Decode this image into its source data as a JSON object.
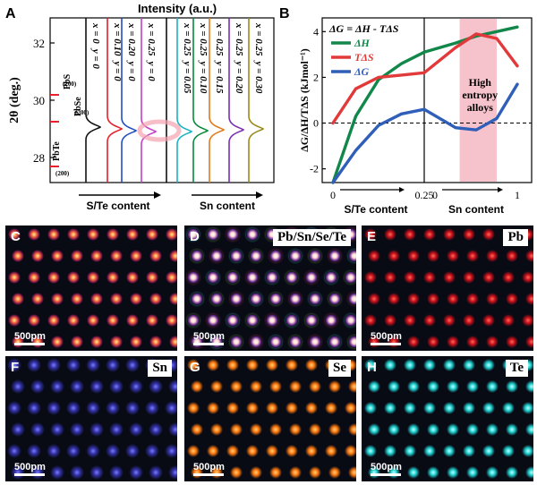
{
  "panelA": {
    "label": "A",
    "top_label": "Intensity (a.u.)",
    "ylabel": "2θ (deg.)",
    "yticks": [
      "32",
      "30",
      "28"
    ],
    "ref_labels": [
      "PbTe",
      "PbS",
      "PbSe"
    ],
    "peak_labels": [
      "(200)",
      "(200)",
      "(200)"
    ],
    "compositions": [
      {
        "x": "x = 0",
        "y": "y = 0",
        "color": "#111111"
      },
      {
        "x": "x = 0.10",
        "y": "y = 0",
        "color": "#e8202a"
      },
      {
        "x": "x = 0.20",
        "y": "y = 0",
        "color": "#1f4fbf"
      },
      {
        "x": "x = 0.25",
        "y": "y = 0",
        "color": "#c23fc6"
      },
      {
        "x": "x = 0.25",
        "y": "y = 0.05",
        "color": "#1bb2c2"
      },
      {
        "x": "x = 0.25",
        "y": "y = 0.10",
        "color": "#0a8a3c"
      },
      {
        "x": "x = 0.25",
        "y": "y = 0.15",
        "color": "#e07a1a"
      },
      {
        "x": "x = 0.25",
        "y": "y = 0.20",
        "color": "#7a2fb0"
      },
      {
        "x": "x = 0.25",
        "y": "y = 0.30",
        "color": "#9a8a1a"
      }
    ],
    "arrow1": "S/Te content",
    "arrow2": "Sn content"
  },
  "panelB": {
    "label": "B",
    "equation": "ΔG = ΔH - TΔS",
    "legend": [
      {
        "label": "ΔH",
        "color": "#12874a"
      },
      {
        "label": "TΔS",
        "color": "#e23a3a"
      },
      {
        "label": "ΔG",
        "color": "#2f5fb8"
      }
    ],
    "ylabel": "ΔG/ΔH/TΔS (kJmol⁻¹)",
    "yticks": [
      "4",
      "2",
      "0",
      "-2"
    ],
    "xticks_left": [
      "0",
      "0.25"
    ],
    "xticks_right": [
      "0",
      "1"
    ],
    "xlabel_left": "S/Te content",
    "xlabel_right": "Sn content",
    "highlight_text": [
      "High",
      "entropy",
      "alloys"
    ],
    "highlight_color": "#f6c3cc"
  },
  "chart_data": {
    "type": "line",
    "x_segments": [
      "S/Te content (0–0.25)",
      "Sn content (0–1)"
    ],
    "x": [
      0,
      0.25,
      0.5,
      0.75,
      1.0,
      1.25,
      1.5,
      1.75,
      2.0
    ],
    "series": [
      {
        "name": "ΔH",
        "values": [
          -2.6,
          0.3,
          1.9,
          2.6,
          3.1,
          3.5,
          3.8,
          4.0,
          4.2
        ]
      },
      {
        "name": "TΔS",
        "values": [
          0.0,
          1.5,
          2.0,
          2.1,
          2.2,
          3.3,
          3.9,
          3.7,
          2.5
        ]
      },
      {
        "name": "ΔG",
        "values": [
          -2.6,
          -1.2,
          -0.1,
          0.4,
          0.6,
          -0.2,
          -0.3,
          0.2,
          1.7
        ]
      }
    ],
    "ylim": [
      -2.6,
      4.6
    ],
    "highlight_x": [
      1.3,
      1.75
    ]
  },
  "panels": [
    {
      "label": "C",
      "tag": "",
      "scale": "500pm"
    },
    {
      "label": "D",
      "tag": "Pb/Sn/Se/Te",
      "scale": "500pm"
    },
    {
      "label": "E",
      "tag": "Pb",
      "scale": "500pm"
    },
    {
      "label": "F",
      "tag": "Sn",
      "scale": "500pm"
    },
    {
      "label": "G",
      "tag": "Se",
      "scale": "500pm"
    },
    {
      "label": "H",
      "tag": "Te",
      "scale": "500pm"
    }
  ]
}
